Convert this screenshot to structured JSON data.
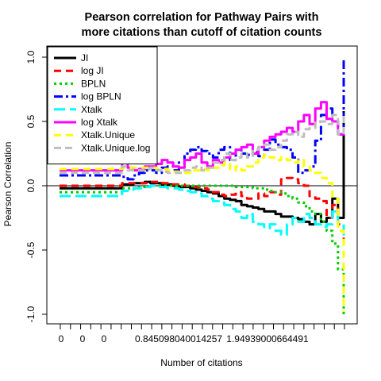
{
  "chart_data": {
    "type": "line",
    "title": "Pearson correlation for Pathway Pairs with\nmore citations than cutoff of citation counts",
    "xlabel": "Number of citations",
    "ylabel": "Pearson Correlation",
    "ylim": [
      -1.0,
      1.0
    ],
    "yticks": [
      "-1.0",
      "-0.5",
      "0.0",
      "0.5",
      "1.0"
    ],
    "xtick_labels": [
      "0",
      "0",
      "0",
      "0.845098040014257",
      "1.94939000664491"
    ],
    "hline": 0,
    "legend_position": "top-left",
    "x": [
      0,
      2,
      4,
      6,
      8,
      10,
      12,
      14,
      16,
      18,
      20,
      22,
      24,
      26,
      28,
      30,
      32,
      34,
      36,
      38,
      40,
      42,
      44,
      46,
      48,
      50,
      52,
      54,
      56,
      58,
      60,
      62,
      64,
      66,
      68,
      70,
      72,
      74,
      76,
      78,
      80,
      82,
      84,
      86,
      88,
      90,
      92,
      94,
      96,
      98,
      100
    ],
    "series": [
      {
        "name": "JI",
        "color": "#000000",
        "dash": "",
        "width": 3,
        "values": [
          -0.02,
          -0.02,
          -0.02,
          -0.02,
          -0.02,
          -0.02,
          -0.02,
          -0.02,
          -0.02,
          -0.02,
          -0.02,
          0.01,
          0.01,
          0.02,
          0.02,
          0.03,
          0.02,
          0.02,
          0.01,
          0.01,
          0.0,
          -0.01,
          -0.01,
          -0.02,
          -0.03,
          -0.04,
          -0.05,
          -0.06,
          -0.08,
          -0.1,
          -0.11,
          -0.12,
          -0.15,
          -0.16,
          -0.17,
          -0.18,
          -0.2,
          -0.2,
          -0.22,
          -0.24,
          -0.24,
          -0.25,
          -0.26,
          -0.28,
          -0.3,
          -0.22,
          -0.28,
          -0.25,
          -0.1,
          -0.25,
          0.58
        ]
      },
      {
        "name": "log JI",
        "color": "#ff0000",
        "dash": "9,6",
        "width": 3,
        "values": [
          0.0,
          0.0,
          0.0,
          0.0,
          0.0,
          0.0,
          0.0,
          0.0,
          0.0,
          0.0,
          0.0,
          0.02,
          0.02,
          0.02,
          0.02,
          0.02,
          0.03,
          0.03,
          0.02,
          0.02,
          0.01,
          0.01,
          0.0,
          -0.01,
          -0.01,
          -0.02,
          -0.03,
          -0.05,
          -0.07,
          -0.08,
          -0.07,
          -0.05,
          -0.08,
          -0.1,
          -0.1,
          -0.06,
          -0.08,
          -0.05,
          -0.07,
          0.05,
          0.06,
          0.05,
          0.02,
          0.0,
          -0.08,
          -0.1,
          -0.12,
          -0.25,
          -0.15,
          -0.3,
          -0.48
        ]
      },
      {
        "name": "BPLN",
        "color": "#00cd00",
        "dash": "3,4",
        "width": 3,
        "values": [
          -0.05,
          -0.05,
          -0.05,
          -0.05,
          -0.05,
          -0.05,
          -0.05,
          -0.05,
          -0.05,
          -0.05,
          -0.05,
          -0.02,
          -0.02,
          -0.02,
          -0.01,
          -0.01,
          0.0,
          0.0,
          0.0,
          0.0,
          0.0,
          0.0,
          0.0,
          0.0,
          0.0,
          0.0,
          0.0,
          0.0,
          0.0,
          0.0,
          0.0,
          -0.01,
          -0.01,
          -0.01,
          -0.02,
          -0.02,
          -0.03,
          -0.04,
          -0.05,
          -0.06,
          -0.08,
          -0.1,
          -0.13,
          -0.16,
          -0.2,
          -0.22,
          -0.28,
          -0.35,
          -0.45,
          -0.65,
          -1.0
        ]
      },
      {
        "name": "log BPLN",
        "color": "#0000ff",
        "dash": "11,4,3,4",
        "width": 3,
        "values": [
          0.08,
          0.08,
          0.08,
          0.08,
          0.08,
          0.08,
          0.08,
          0.08,
          0.08,
          0.08,
          0.08,
          0.07,
          0.05,
          0.08,
          0.1,
          0.12,
          0.12,
          0.1,
          0.14,
          0.15,
          0.12,
          0.18,
          0.25,
          0.28,
          0.3,
          0.27,
          0.25,
          0.22,
          0.28,
          0.3,
          0.2,
          0.28,
          0.25,
          0.24,
          0.26,
          0.23,
          0.28,
          0.36,
          0.32,
          0.3,
          0.28,
          0.22,
          0.1,
          0.12,
          0.15,
          0.35,
          0.55,
          0.6,
          0.5,
          0.4,
          1.0
        ]
      },
      {
        "name": "Xtalk",
        "color": "#00ffff",
        "dash": "14,6",
        "width": 3,
        "values": [
          -0.08,
          -0.08,
          -0.08,
          -0.08,
          -0.08,
          -0.08,
          -0.08,
          -0.08,
          -0.08,
          -0.08,
          -0.08,
          -0.04,
          -0.03,
          -0.02,
          -0.02,
          -0.01,
          0.0,
          -0.01,
          -0.01,
          -0.02,
          -0.02,
          -0.03,
          -0.04,
          -0.05,
          -0.06,
          -0.08,
          -0.1,
          -0.12,
          -0.13,
          -0.15,
          -0.18,
          -0.2,
          -0.25,
          -0.22,
          -0.28,
          -0.3,
          -0.33,
          -0.3,
          -0.35,
          -0.38,
          -0.3,
          -0.25,
          -0.28,
          -0.22,
          -0.25,
          -0.3,
          -0.32,
          -0.3,
          -0.2,
          -0.3,
          -0.45
        ]
      },
      {
        "name": "log Xtalk",
        "color": "#ff00ff",
        "dash": "",
        "width": 3,
        "values": [
          0.12,
          0.12,
          0.12,
          0.12,
          0.12,
          0.12,
          0.12,
          0.12,
          0.12,
          0.12,
          0.12,
          0.18,
          0.14,
          0.12,
          0.13,
          0.15,
          0.15,
          0.17,
          0.2,
          0.18,
          0.15,
          0.14,
          0.2,
          0.22,
          0.25,
          0.18,
          0.15,
          0.2,
          0.18,
          0.22,
          0.25,
          0.28,
          0.3,
          0.32,
          0.25,
          0.3,
          0.35,
          0.38,
          0.4,
          0.42,
          0.45,
          0.42,
          0.5,
          0.55,
          0.48,
          0.6,
          0.65,
          0.52,
          0.5,
          0.4,
          0.45
        ]
      },
      {
        "name": "Xtalk.Unique",
        "color": "#ffff00",
        "dash": "9,6",
        "width": 3,
        "values": [
          0.13,
          0.13,
          0.13,
          0.13,
          0.13,
          0.13,
          0.13,
          0.13,
          0.13,
          0.13,
          0.13,
          0.14,
          0.14,
          0.14,
          0.14,
          0.14,
          0.14,
          0.13,
          0.13,
          0.12,
          0.11,
          0.1,
          0.1,
          0.12,
          0.12,
          0.13,
          0.12,
          0.14,
          0.16,
          0.18,
          0.12,
          0.15,
          0.12,
          0.15,
          0.18,
          0.22,
          0.24,
          0.22,
          0.2,
          0.22,
          0.2,
          0.18,
          0.2,
          0.15,
          0.12,
          0.1,
          0.06,
          0.02,
          -0.1,
          -0.35,
          -0.98
        ]
      },
      {
        "name": "Xtalk.Unique.log",
        "color": "#bebebe",
        "dash": "9,5",
        "width": 3,
        "values": [
          0.1,
          0.1,
          0.1,
          0.1,
          0.1,
          0.1,
          0.1,
          0.1,
          0.1,
          0.1,
          0.1,
          0.15,
          0.12,
          0.12,
          0.12,
          0.13,
          0.14,
          0.12,
          0.11,
          0.1,
          0.1,
          0.1,
          0.12,
          0.14,
          0.15,
          0.12,
          0.14,
          0.18,
          0.2,
          0.25,
          0.2,
          0.22,
          0.25,
          0.22,
          0.28,
          0.3,
          0.32,
          0.28,
          0.3,
          0.35,
          0.4,
          0.42,
          0.38,
          0.44,
          0.45,
          0.5,
          0.5,
          0.48,
          0.55,
          0.4,
          0.55
        ]
      }
    ]
  }
}
